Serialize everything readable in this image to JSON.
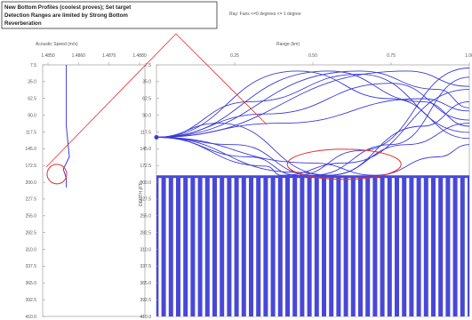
{
  "title_box": {
    "lines": [
      "New Bottom Profiles (coolest proves); Set target",
      "Detection Ranges are limited by Strong Bottom",
      "Reverberation"
    ]
  },
  "ray_fan_label": "Ray: Fans <=0 degrees <= 1 degree",
  "chart_data": [
    {
      "type": "line",
      "panel": "sound-speed-profile",
      "xlabel": "Acoustic Speed (m/s)",
      "x_ticks": [
        "1.4850",
        "1.4860",
        "1.4870",
        "1.4880"
      ],
      "ylim": [
        0,
        410
      ],
      "y_ticks": [
        "7.5",
        "35.0",
        "62.5",
        "90.0",
        "117.5",
        "145.0",
        "172.5",
        "200.0",
        "227.5",
        "255.0",
        "282.5",
        "310.0",
        "337.5",
        "365.0",
        "392.5",
        "410.0"
      ],
      "series": [
        {
          "speed": [
            1485.6,
            1485.6,
            1485.6,
            1485.7,
            1485.5,
            1485.6,
            1485.6
          ],
          "depth": [
            0,
            40,
            100,
            150,
            170,
            185,
            200
          ]
        }
      ],
      "annotation": "circle at profile inflection near 170-190 m"
    },
    {
      "type": "line",
      "panel": "ray-trace",
      "xlabel": "Range (km)",
      "ylabel": "DEPTH (FT)",
      "xlim": [
        0,
        1.0
      ],
      "x_ticks": [
        "0.25",
        "0.50",
        "0.75",
        "1.00"
      ],
      "ylim": [
        0,
        410
      ],
      "y_ticks": [
        "7.5",
        "35.0",
        "62.5",
        "90.0",
        "117.5",
        "145.0",
        "172.5",
        "200.0",
        "227.5",
        "255.0",
        "282.5",
        "310.0",
        "337.5",
        "365.0",
        "392.5",
        "410.0"
      ],
      "source": {
        "range": 0,
        "depth": 118
      },
      "bottom_depth": 180,
      "rays": [
        [
          [
            0,
            118
          ],
          [
            0.45,
            10
          ],
          [
            0.75,
            55
          ],
          [
            1.0,
            120
          ]
        ],
        [
          [
            0,
            118
          ],
          [
            0.55,
            10
          ],
          [
            0.85,
            60
          ],
          [
            1.0,
            100
          ]
        ],
        [
          [
            0,
            118
          ],
          [
            0.65,
            10
          ],
          [
            0.9,
            40
          ],
          [
            1.0,
            70
          ]
        ],
        [
          [
            0,
            118
          ],
          [
            0.8,
            10
          ],
          [
            1.0,
            35
          ]
        ],
        [
          [
            0,
            118
          ],
          [
            0.3,
            60
          ],
          [
            0.65,
            15
          ],
          [
            1.0,
            110
          ]
        ],
        [
          [
            0,
            118
          ],
          [
            0.35,
            80
          ],
          [
            0.75,
            30
          ],
          [
            1.0,
            90
          ]
        ],
        [
          [
            0,
            118
          ],
          [
            0.4,
            95
          ],
          [
            0.85,
            55
          ],
          [
            1.0,
            75
          ]
        ],
        [
          [
            0,
            118
          ],
          [
            0.2,
            95
          ],
          [
            0.55,
            180
          ],
          [
            0.85,
            100
          ],
          [
            1.0,
            60
          ]
        ],
        [
          [
            0,
            118
          ],
          [
            0.25,
            130
          ],
          [
            0.5,
            180
          ],
          [
            0.75,
            130
          ],
          [
            1.0,
            20
          ]
        ],
        [
          [
            0,
            118
          ],
          [
            0.3,
            150
          ],
          [
            0.45,
            180
          ],
          [
            0.65,
            140
          ],
          [
            1.0,
            5
          ]
        ],
        [
          [
            0,
            118
          ],
          [
            0.35,
            165
          ],
          [
            0.4,
            180
          ],
          [
            0.6,
            160
          ],
          [
            1.0,
            40
          ]
        ],
        [
          [
            0,
            118
          ],
          [
            0.45,
            175
          ],
          [
            0.55,
            180
          ],
          [
            0.8,
            130
          ],
          [
            1.0,
            95
          ]
        ],
        [
          [
            0,
            118
          ],
          [
            0.5,
            160
          ],
          [
            0.7,
            180
          ],
          [
            0.9,
            150
          ],
          [
            1.0,
            130
          ]
        ]
      ],
      "annotation": "ellipse around bottom-reflection zone near range 0.45-0.75 km"
    }
  ],
  "colors": {
    "ray": "#3b3bd6",
    "annotation": "#e03030",
    "axis": "#9a9a9a",
    "bottom_fill": "#4848d8",
    "bottom_gap": "#ffffff"
  }
}
